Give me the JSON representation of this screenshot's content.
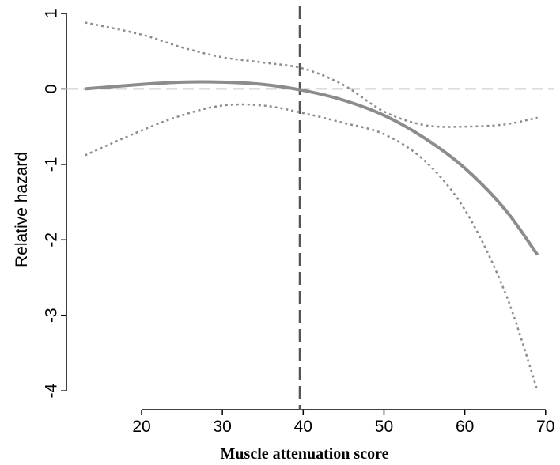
{
  "chart_data": {
    "type": "line",
    "x_label": "Muscle attenuation score",
    "y_label": "Relative hazard",
    "x": [
      13,
      20,
      25,
      30,
      35,
      40,
      45,
      50,
      55,
      60,
      65,
      69
    ],
    "series": [
      {
        "color": "#8c8c8c",
        "style": "solid",
        "values": [
          0.0,
          0.06,
          0.09,
          0.09,
          0.06,
          -0.02,
          -0.15,
          -0.35,
          -0.65,
          -1.05,
          -1.6,
          -2.2
        ]
      },
      {
        "color": "#8c8c8c",
        "style": "dotted",
        "values": [
          0.88,
          0.72,
          0.55,
          0.42,
          0.35,
          0.27,
          0.05,
          -0.3,
          -0.48,
          -0.5,
          -0.47,
          -0.38
        ]
      },
      {
        "color": "#8c8c8c",
        "style": "dotted",
        "values": [
          -0.88,
          -0.55,
          -0.35,
          -0.22,
          -0.22,
          -0.32,
          -0.45,
          -0.6,
          -0.95,
          -1.6,
          -2.7,
          -4.0
        ]
      }
    ],
    "hline": 0,
    "hline_color": "#c8c8c8",
    "vline": 39.6,
    "vline_color": "#555555",
    "xlim": [
      10.7,
      71
    ],
    "ylim": [
      -4.25,
      1
    ],
    "xticks": [
      20,
      30,
      40,
      50,
      60,
      70
    ],
    "yticks": [
      1,
      0,
      -1,
      -2,
      -3,
      -4
    ]
  }
}
